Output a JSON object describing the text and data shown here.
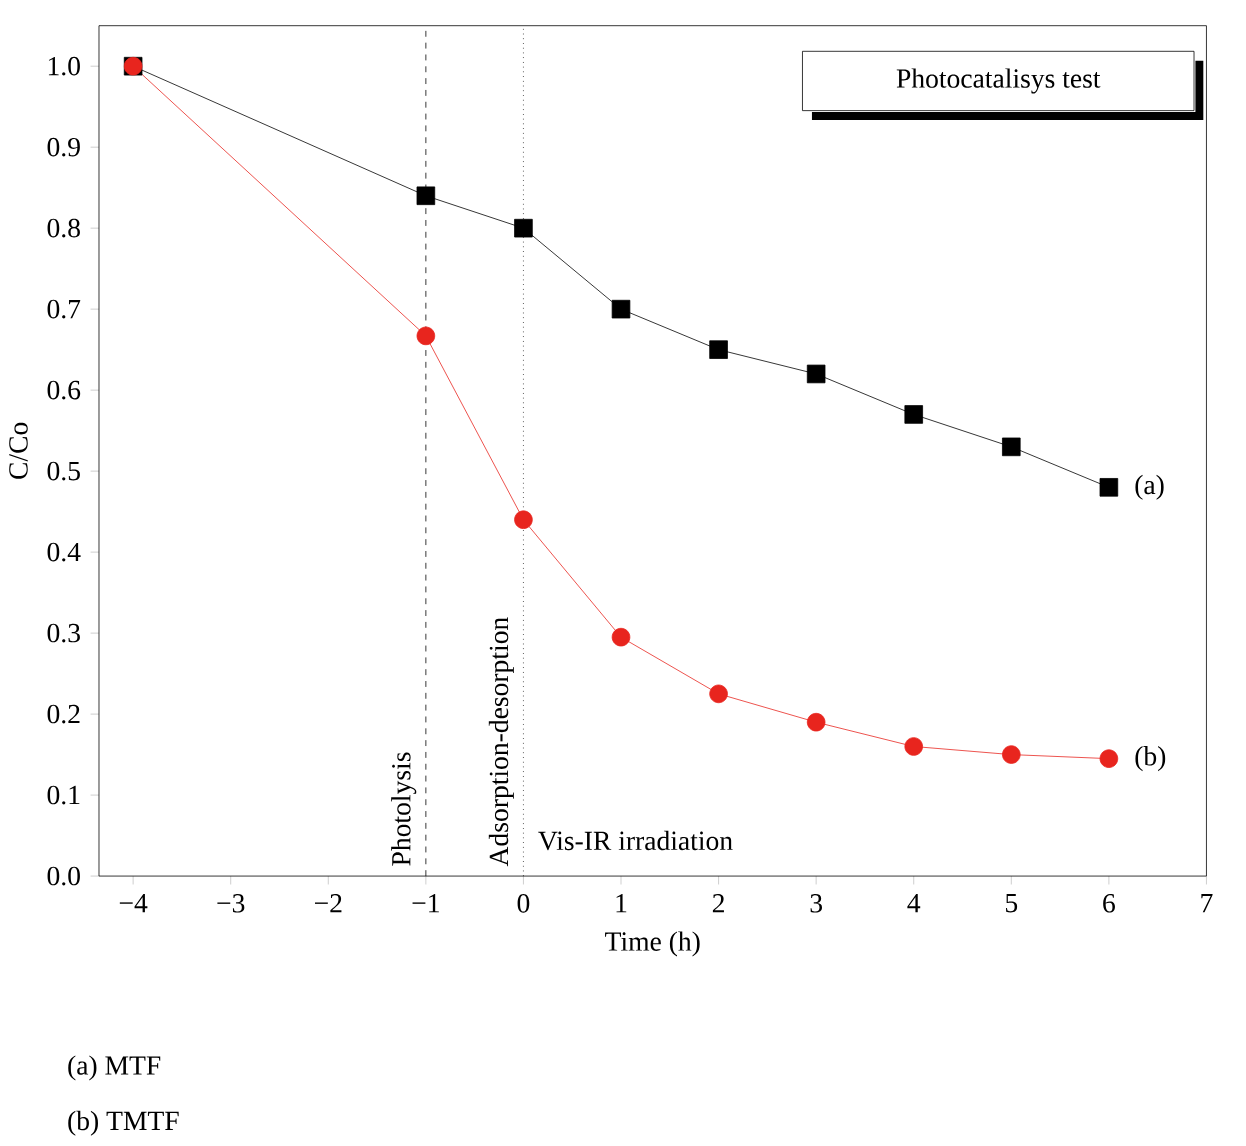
{
  "chart_data": {
    "type": "line",
    "xlabel": "Time (h)",
    "ylabel": "C/Co",
    "x": [
      -4,
      -1,
      0,
      1,
      2,
      3,
      4,
      5,
      6
    ],
    "series": [
      {
        "name": "(a)",
        "color": "#000000",
        "marker": "square",
        "values": [
          1.0,
          0.84,
          0.8,
          0.7,
          0.65,
          0.62,
          0.57,
          0.53,
          0.48
        ]
      },
      {
        "name": "(b)",
        "color": "#e8251e",
        "marker": "circle",
        "values": [
          1.0,
          0.667,
          0.44,
          0.295,
          0.225,
          0.19,
          0.16,
          0.15,
          0.145
        ]
      }
    ],
    "xlim": [
      -4.35,
      7
    ],
    "ylim": [
      0,
      1.05
    ],
    "xticks": [
      {
        "value": -4,
        "label": "−4"
      },
      {
        "value": -3,
        "label": "−3"
      },
      {
        "value": -2,
        "label": "−2"
      },
      {
        "value": -1,
        "label": "−1"
      },
      0,
      1,
      2,
      3,
      4,
      5,
      6,
      7
    ],
    "yticks": [
      {
        "value": 0,
        "label": "0.0"
      },
      0.1,
      0.2,
      0.3,
      0.4,
      0.5,
      0.6,
      0.7,
      0.8,
      0.9,
      {
        "value": 1,
        "label": "1.0"
      }
    ],
    "ref_lines": [
      {
        "axis": "x",
        "value": -1,
        "label": "Photolysis",
        "line_style": "dashed"
      },
      {
        "axis": "x",
        "value": 0,
        "label": "Adsorption-desorption",
        "line_style": "dotted"
      }
    ],
    "annotations": [
      "Photocatalisys test",
      "Vis-IR irradiation",
      "(a) MTF",
      "(b) TMTF"
    ],
    "grid": false
  }
}
